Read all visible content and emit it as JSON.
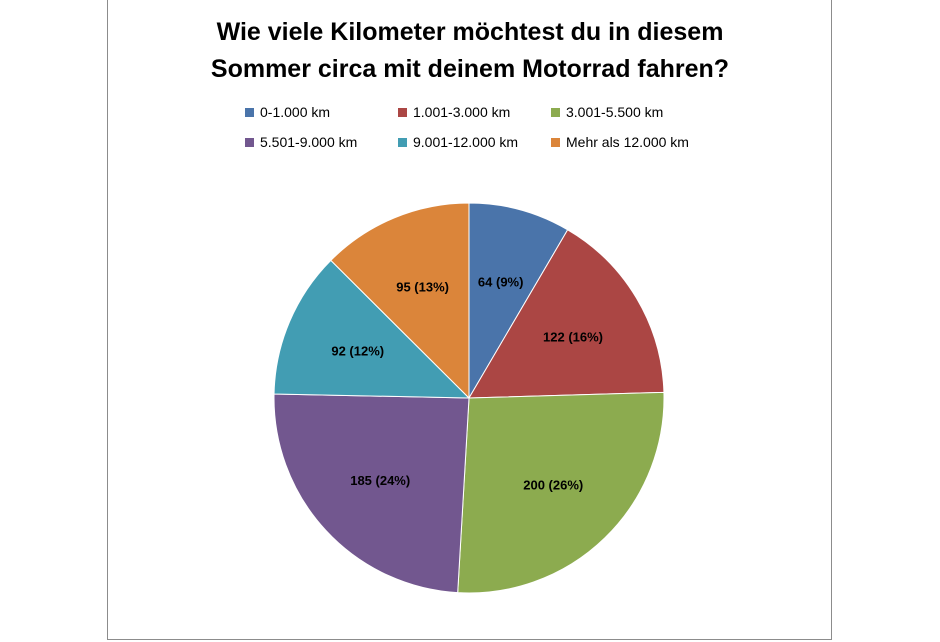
{
  "chart_data": {
    "type": "pie",
    "title": "Wie viele Kilometer möchtest du in diesem Sommer circa mit deinem Motorrad fahren?",
    "title_lines": [
      "Wie viele Kilometer möchtest du in diesem",
      "Sommer circa mit deinem Motorrad fahren?"
    ],
    "legend_position": "top",
    "slices": [
      {
        "label": "0-1.000 km",
        "value": 64,
        "percent": "9%",
        "data_label": "64 (9%)",
        "color": "#4A74AA"
      },
      {
        "label": "1.001-3.000 km",
        "value": 122,
        "percent": "16%",
        "data_label": "122 (16%)",
        "color": "#AB4644"
      },
      {
        "label": "3.001-5.500 km",
        "value": 200,
        "percent": "26%",
        "data_label": "200 (26%)",
        "color": "#8CAB4F"
      },
      {
        "label": "5.501-9.000 km",
        "value": 185,
        "percent": "24%",
        "data_label": "185 (24%)",
        "color": "#72578F"
      },
      {
        "label": "9.001-12.000 km",
        "value": 92,
        "percent": "12%",
        "data_label": "92 (12%)",
        "color": "#429DB3"
      },
      {
        "label": "Mehr als 12.000 km",
        "value": 95,
        "percent": "13%",
        "data_label": "95 (13%)",
        "color": "#DB853A"
      }
    ]
  }
}
